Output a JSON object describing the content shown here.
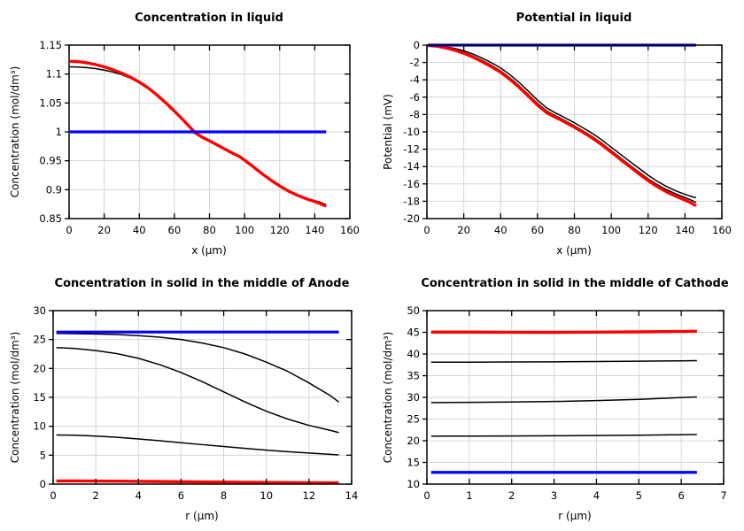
{
  "page": {
    "background": "#ffffff",
    "grid_color": "#d4d4d4",
    "axis_color": "#000000"
  },
  "chart_data": [
    {
      "type": "line",
      "title": "Concentration in liquid",
      "xlabel": "x (µm)",
      "ylabel": "Concentration (mol/dm³)",
      "xlim": [
        0,
        160
      ],
      "ylim": [
        0.85,
        1.15
      ],
      "xticks": [
        0,
        20,
        40,
        60,
        80,
        100,
        120,
        140,
        160
      ],
      "yticks": [
        0.85,
        0.9,
        0.95,
        1,
        1.05,
        1.1,
        1.15
      ],
      "grid": true,
      "legend": "none",
      "series": [
        {
          "name": "black-curve",
          "color": "#000000",
          "width": 1.5,
          "x": [
            0.5,
            5,
            10,
            15,
            20,
            25,
            30,
            35,
            40,
            45,
            50,
            55,
            60,
            65,
            70,
            72,
            76,
            80,
            84,
            88,
            92,
            94,
            97,
            100,
            105,
            110,
            115,
            120,
            125,
            130,
            135,
            140,
            143,
            146.5
          ],
          "y": [
            1.1125,
            1.1122,
            1.1112,
            1.1094,
            1.1068,
            1.1034,
            1.099,
            1.0928,
            1.0852,
            1.0758,
            1.0642,
            1.051,
            1.0362,
            1.0208,
            1.0048,
            0.9984,
            0.9908,
            0.9848,
            0.9784,
            0.9718,
            0.9652,
            0.962,
            0.9578,
            0.9512,
            0.9398,
            0.928,
            0.917,
            0.907,
            0.898,
            0.891,
            0.8855,
            0.881,
            0.8785,
            0.874
          ]
        },
        {
          "name": "red-curve",
          "color": "#ff0000",
          "width": 3.4,
          "x": [
            0.5,
            5,
            10,
            15,
            20,
            25,
            30,
            35,
            40,
            45,
            50,
            55,
            60,
            65,
            70,
            72,
            76,
            80,
            84,
            88,
            92,
            94,
            97,
            100,
            105,
            110,
            115,
            120,
            125,
            130,
            135,
            140,
            143,
            146.5
          ],
          "y": [
            1.122,
            1.1215,
            1.1195,
            1.1165,
            1.1125,
            1.1075,
            1.1015,
            1.0945,
            1.086,
            1.076,
            1.064,
            1.0505,
            1.036,
            1.0205,
            1.0045,
            0.998,
            0.9905,
            0.9845,
            0.978,
            0.9715,
            0.965,
            0.9618,
            0.9575,
            0.951,
            0.9395,
            0.9275,
            0.9165,
            0.9065,
            0.8975,
            0.8905,
            0.8845,
            0.8795,
            0.876,
            0.8715
          ]
        },
        {
          "name": "blue-line",
          "color": "#0000ff",
          "width": 3.2,
          "x": [
            0.5,
            146.5
          ],
          "y": [
            1.0,
            1.0
          ]
        }
      ]
    },
    {
      "type": "line",
      "title": "Potential in liquid",
      "xlabel": "x (µm)",
      "ylabel": "Potential (mV)",
      "xlim": [
        0,
        160
      ],
      "ylim": [
        -20,
        0
      ],
      "xticks": [
        0,
        20,
        40,
        60,
        80,
        100,
        120,
        140,
        160
      ],
      "yticks": [
        0,
        -2,
        -4,
        -6,
        -8,
        -10,
        -12,
        -14,
        -16,
        -18,
        -20
      ],
      "grid": true,
      "legend": "none",
      "series": [
        {
          "name": "black-curve-upper",
          "color": "#000000",
          "width": 1.5,
          "x": [
            0.5,
            5,
            10,
            15,
            20,
            25,
            30,
            35,
            40,
            45,
            50,
            55,
            60,
            65,
            70,
            72,
            76,
            80,
            84,
            88,
            92,
            95,
            98,
            102,
            106,
            110,
            115,
            120,
            125,
            130,
            135,
            140,
            143,
            146
          ],
          "y": [
            -0.02,
            -0.06,
            -0.18,
            -0.38,
            -0.65,
            -1.03,
            -1.5,
            -2.03,
            -2.63,
            -3.4,
            -4.3,
            -5.3,
            -6.35,
            -7.25,
            -7.85,
            -8.05,
            -8.5,
            -8.95,
            -9.45,
            -9.95,
            -10.5,
            -10.95,
            -11.45,
            -12.1,
            -12.75,
            -13.4,
            -14.2,
            -15.0,
            -15.7,
            -16.3,
            -16.8,
            -17.2,
            -17.42,
            -17.6
          ]
        },
        {
          "name": "black-curve-lower",
          "color": "#000000",
          "width": 1.5,
          "x": [
            0.5,
            5,
            10,
            15,
            20,
            25,
            30,
            35,
            40,
            45,
            50,
            55,
            60,
            65,
            70,
            72,
            76,
            80,
            84,
            88,
            92,
            95,
            98,
            102,
            106,
            110,
            115,
            120,
            125,
            130,
            135,
            140,
            143,
            146
          ],
          "y": [
            -0.03,
            -0.08,
            -0.23,
            -0.48,
            -0.82,
            -1.25,
            -1.76,
            -2.33,
            -2.97,
            -3.77,
            -4.68,
            -5.68,
            -6.72,
            -7.6,
            -8.18,
            -8.38,
            -8.84,
            -9.3,
            -9.81,
            -10.32,
            -10.88,
            -11.33,
            -11.84,
            -12.5,
            -13.16,
            -13.82,
            -14.63,
            -15.42,
            -16.1,
            -16.67,
            -17.15,
            -17.57,
            -17.84,
            -18.13
          ]
        },
        {
          "name": "red-curve",
          "color": "#ff0000",
          "width": 3.4,
          "x": [
            0.5,
            5,
            10,
            15,
            20,
            25,
            30,
            35,
            40,
            45,
            50,
            55,
            60,
            65,
            70,
            72,
            76,
            80,
            84,
            88,
            92,
            95,
            98,
            102,
            106,
            110,
            115,
            120,
            125,
            130,
            135,
            140,
            143,
            146
          ],
          "y": [
            -0.04,
            -0.11,
            -0.3,
            -0.58,
            -0.94,
            -1.39,
            -1.91,
            -2.49,
            -3.13,
            -3.94,
            -4.86,
            -5.87,
            -6.92,
            -7.79,
            -8.36,
            -8.55,
            -9.0,
            -9.46,
            -9.97,
            -10.48,
            -11.04,
            -11.5,
            -12.01,
            -12.67,
            -13.34,
            -14.0,
            -14.82,
            -15.62,
            -16.32,
            -16.92,
            -17.42,
            -17.86,
            -18.16,
            -18.52
          ]
        },
        {
          "name": "blue-line",
          "color": "#0000ff",
          "width": 3.2,
          "x": [
            0.5,
            146
          ],
          "y": [
            0,
            0
          ]
        }
      ]
    },
    {
      "type": "line",
      "title": "Concentration in solid in the middle of Anode",
      "xlabel": "r (µm)",
      "ylabel": "Concentration (mol/dm³)",
      "xlim": [
        0,
        14
      ],
      "ylim": [
        0,
        30
      ],
      "xticks": [
        0,
        2,
        4,
        6,
        8,
        10,
        12,
        14
      ],
      "yticks": [
        0,
        5,
        10,
        15,
        20,
        25,
        30
      ],
      "grid": true,
      "legend": "none",
      "series": [
        {
          "name": "black-curve-1",
          "color": "#000000",
          "width": 1.5,
          "x": [
            0.15,
            1,
            2,
            3,
            4,
            5,
            6,
            7,
            8,
            9,
            10,
            11,
            12,
            13,
            13.4
          ],
          "y": [
            26.05,
            26.02,
            25.96,
            25.86,
            25.68,
            25.4,
            25.0,
            24.4,
            23.6,
            22.5,
            21.1,
            19.5,
            17.5,
            15.3,
            14.2
          ]
        },
        {
          "name": "black-curve-2",
          "color": "#000000",
          "width": 1.5,
          "x": [
            0.15,
            1,
            2,
            3,
            4,
            5,
            6,
            7,
            8,
            9,
            10,
            11,
            12,
            13,
            13.4
          ],
          "y": [
            23.6,
            23.45,
            23.1,
            22.55,
            21.75,
            20.65,
            19.3,
            17.7,
            15.95,
            14.2,
            12.6,
            11.25,
            10.15,
            9.3,
            8.9
          ]
        },
        {
          "name": "black-curve-3",
          "color": "#000000",
          "width": 1.5,
          "x": [
            0.15,
            1,
            2,
            3,
            4,
            5,
            6,
            7,
            8,
            9,
            10,
            11,
            12,
            13,
            13.4
          ],
          "y": [
            8.5,
            8.45,
            8.3,
            8.1,
            7.8,
            7.5,
            7.15,
            6.82,
            6.5,
            6.18,
            5.88,
            5.6,
            5.38,
            5.15,
            5.05
          ]
        },
        {
          "name": "red-line",
          "color": "#ff0000",
          "width": 3.4,
          "x": [
            0.15,
            1,
            2,
            3,
            4,
            5,
            6,
            7,
            8,
            9,
            10,
            11,
            12,
            13,
            13.4
          ],
          "y": [
            0.55,
            0.54,
            0.52,
            0.5,
            0.47,
            0.44,
            0.41,
            0.38,
            0.35,
            0.32,
            0.29,
            0.26,
            0.24,
            0.22,
            0.21
          ]
        },
        {
          "name": "blue-line",
          "color": "#0000ff",
          "width": 3.2,
          "x": [
            0.15,
            13.4
          ],
          "y": [
            26.3,
            26.3
          ]
        }
      ]
    },
    {
      "type": "line",
      "title": "Concentration in solid in the middle of Cathode",
      "xlabel": "r (µm)",
      "ylabel": "Concentration (mol/dm³)",
      "xlim": [
        0,
        7
      ],
      "ylim": [
        10,
        50
      ],
      "xticks": [
        0,
        1,
        2,
        3,
        4,
        5,
        6,
        7
      ],
      "yticks": [
        10,
        15,
        20,
        25,
        30,
        35,
        40,
        45,
        50
      ],
      "grid": true,
      "legend": "none",
      "series": [
        {
          "name": "red-line",
          "color": "#ff0000",
          "width": 3.4,
          "x": [
            0.1,
            1,
            2,
            3,
            4,
            5,
            6,
            6.37
          ],
          "y": [
            45.05,
            45.05,
            45.02,
            45.0,
            45.03,
            45.1,
            45.2,
            45.25
          ]
        },
        {
          "name": "black-curve-1",
          "color": "#000000",
          "width": 1.5,
          "x": [
            0.1,
            1,
            2,
            3,
            4,
            5,
            6,
            6.37
          ],
          "y": [
            38.1,
            38.12,
            38.16,
            38.2,
            38.26,
            38.33,
            38.42,
            38.47
          ]
        },
        {
          "name": "black-curve-2",
          "color": "#000000",
          "width": 1.5,
          "x": [
            0.1,
            1,
            2,
            3,
            4,
            5,
            6,
            6.37
          ],
          "y": [
            28.8,
            28.85,
            28.93,
            29.05,
            29.25,
            29.55,
            29.95,
            30.1
          ]
        },
        {
          "name": "black-curve-3",
          "color": "#000000",
          "width": 1.5,
          "x": [
            0.1,
            1,
            2,
            3,
            4,
            5,
            6,
            6.37
          ],
          "y": [
            21.05,
            21.08,
            21.1,
            21.15,
            21.2,
            21.28,
            21.38,
            21.43
          ]
        },
        {
          "name": "blue-line",
          "color": "#0000ff",
          "width": 3.2,
          "x": [
            0.1,
            6.37
          ],
          "y": [
            12.7,
            12.7
          ]
        }
      ]
    }
  ]
}
